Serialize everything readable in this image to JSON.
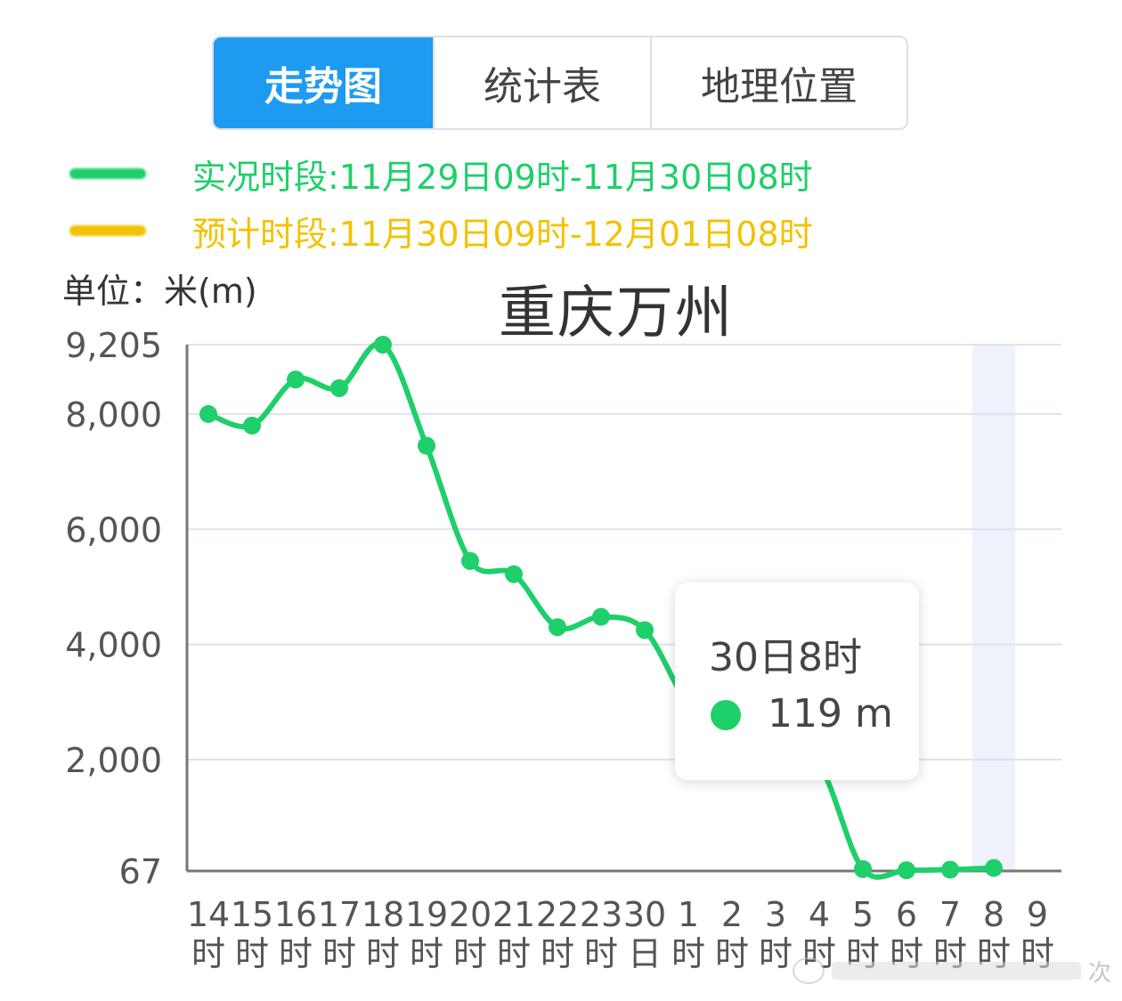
{
  "tabs": [
    {
      "label": "走势图",
      "active": true
    },
    {
      "label": "统计表",
      "active": false
    },
    {
      "label": "地理位置",
      "active": false
    }
  ],
  "legend": [
    {
      "text": "实况时段:11月29日09时-11月30日08时",
      "color": "#1ecf6a"
    },
    {
      "text": "预计时段:11月30日09时-12月01日08时",
      "color": "#f2c200"
    }
  ],
  "unit_label": "单位：米(m)",
  "city": "重庆万州",
  "tooltip": {
    "title": "30日8时",
    "value": "119 m"
  },
  "watermark": {
    "text": "次"
  },
  "colors": {
    "observed": "#1ecf6a",
    "forecast": "#f2c200",
    "tab_active": "#1e9bf0",
    "grid": "#dde3ec"
  },
  "chart_data": {
    "type": "line",
    "x": [
      "14时",
      "15时",
      "16时",
      "17时",
      "18时",
      "19时",
      "20时",
      "21时",
      "22时",
      "23时",
      "30日",
      "1时",
      "2时",
      "3时",
      "4时",
      "5时",
      "6时",
      "7时",
      "8时",
      "9时"
    ],
    "series": [
      {
        "values": [
          8000,
          7800,
          8600,
          8450,
          9205,
          7450,
          5450,
          5220,
          4300,
          4480,
          4250,
          2950,
          2250,
          2000,
          1900,
          100,
          80,
          90,
          119,
          null
        ]
      }
    ],
    "yticks": [
      "9,205",
      "8,000",
      "6,000",
      "4,000",
      "2,000",
      "67"
    ],
    "ytick_values": [
      9205,
      8000,
      6000,
      4000,
      2000,
      67
    ],
    "ylim": [
      67,
      9205
    ],
    "highlight_category": "8时",
    "grid": true
  }
}
